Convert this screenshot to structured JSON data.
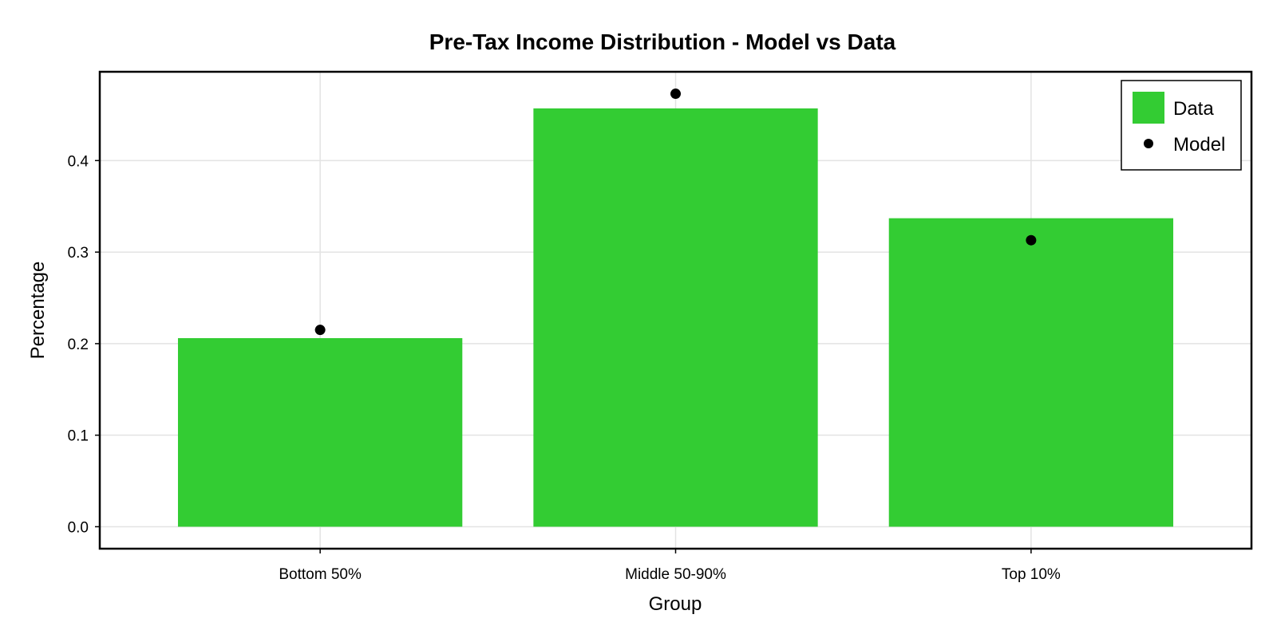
{
  "chart_data": {
    "type": "bar",
    "title": "Pre-Tax Income Distribution - Model vs Data",
    "xlabel": "Group",
    "ylabel": "Percentage",
    "categories": [
      "Bottom 50%",
      "Middle 50-90%",
      "Top 10%"
    ],
    "series": [
      {
        "name": "Data",
        "kind": "bar",
        "values": [
          0.206,
          0.457,
          0.337
        ],
        "color": "#33cc33"
      },
      {
        "name": "Model",
        "kind": "scatter",
        "values": [
          0.215,
          0.473,
          0.313
        ],
        "color": "#000000"
      }
    ],
    "ylim": [
      -0.024,
      0.497
    ],
    "yticks": [
      "0.0",
      "0.1",
      "0.2",
      "0.3",
      "0.4"
    ],
    "grid": true,
    "legend_position": "top-right"
  }
}
